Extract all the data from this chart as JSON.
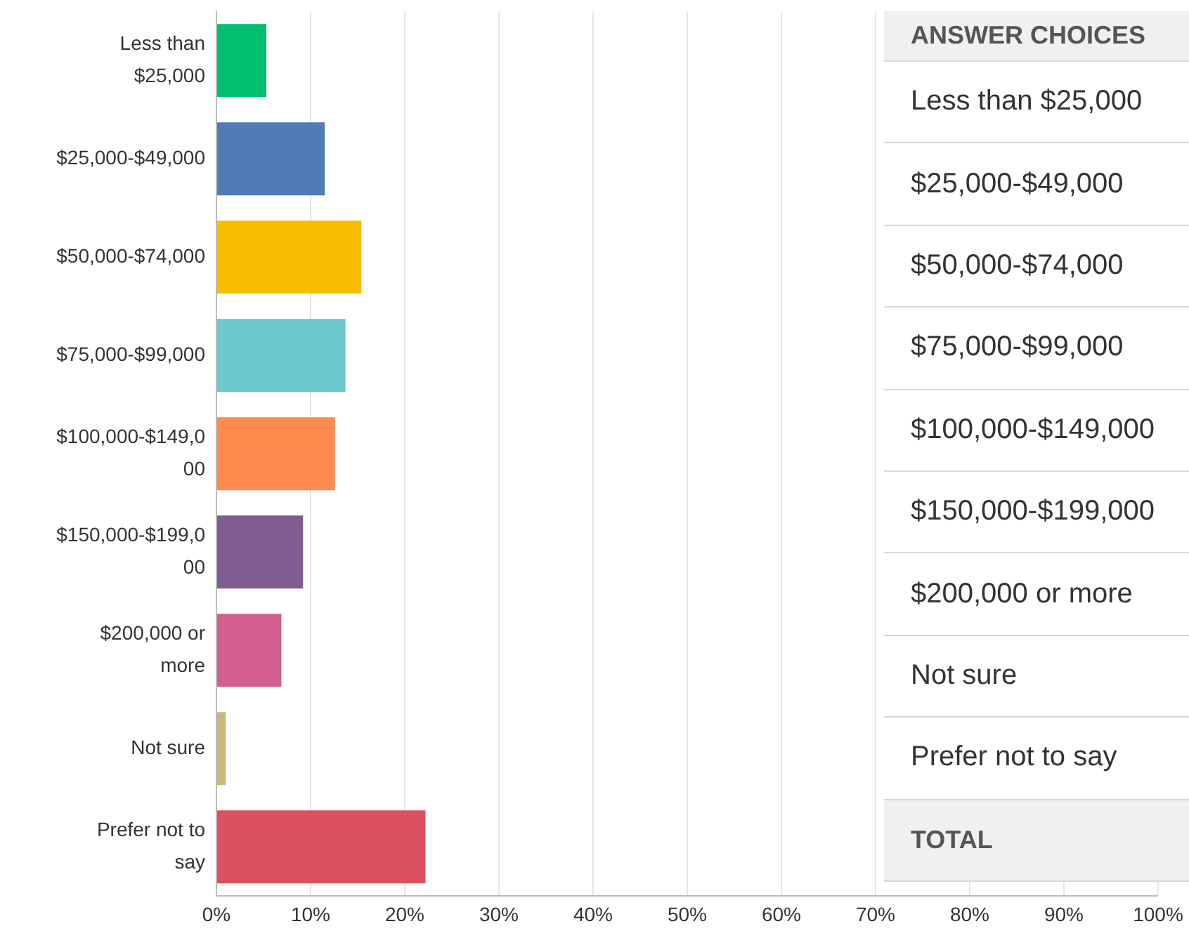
{
  "chart_data": {
    "type": "bar",
    "orientation": "horizontal",
    "categories": [
      "Less than $25,000",
      "$25,000-$49,000",
      "$50,000-$74,000",
      "$75,000-$99,000",
      "$100,000-$149,000",
      "$150,000-$199,000",
      "$200,000 or more",
      "Not sure",
      "Prefer not to say"
    ],
    "values": [
      5.3,
      11.5,
      15.4,
      13.7,
      12.6,
      9.2,
      6.9,
      1.0,
      22.2
    ],
    "colors": [
      "#00bf6f",
      "#507cb6",
      "#f9be00",
      "#6bc8cd",
      "#ff8b4f",
      "#7f5c91",
      "#d25f90",
      "#c9b77b",
      "#dc5060"
    ],
    "xlim": [
      0,
      100
    ],
    "xticks": [
      {
        "value": 0,
        "label": "0%"
      },
      {
        "value": 10,
        "label": "10%"
      },
      {
        "value": 20,
        "label": "20%"
      },
      {
        "value": 30,
        "label": "30%"
      },
      {
        "value": 40,
        "label": "40%"
      },
      {
        "value": 50,
        "label": "50%"
      },
      {
        "value": 60,
        "label": "60%"
      },
      {
        "value": 70,
        "label": "70%"
      },
      {
        "value": 80,
        "label": "80%"
      },
      {
        "value": 90,
        "label": "90%"
      },
      {
        "value": 100,
        "label": "100%"
      }
    ],
    "grid": "x",
    "annotations": [
      "ANSWER CHOICES",
      "TOTAL"
    ]
  }
}
